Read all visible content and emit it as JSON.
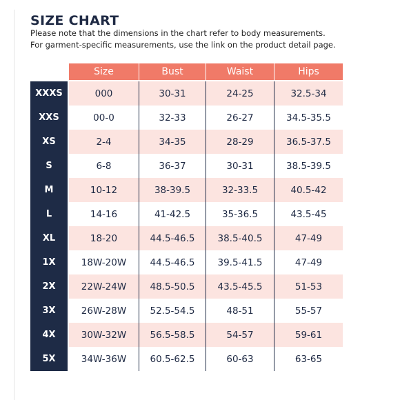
{
  "title": "SIZE CHART",
  "note_line1": "Please note that the dimensions in the chart refer to body measurements.",
  "note_line2": "For garment-specific measurements, use the link on the product detail page.",
  "colors": {
    "header": "#f07a68",
    "navy": "#1e2b46",
    "row_shade": "#fce4e0"
  },
  "columns": [
    "Size",
    "Bust",
    "Waist",
    "Hips"
  ],
  "rows": [
    {
      "label": "XXXS",
      "size": "000",
      "bust": "30-31",
      "waist": "24-25",
      "hips": "32.5-34"
    },
    {
      "label": "XXS",
      "size": "00-0",
      "bust": "32-33",
      "waist": "26-27",
      "hips": "34.5-35.5"
    },
    {
      "label": "XS",
      "size": "2-4",
      "bust": "34-35",
      "waist": "28-29",
      "hips": "36.5-37.5"
    },
    {
      "label": "S",
      "size": "6-8",
      "bust": "36-37",
      "waist": "30-31",
      "hips": "38.5-39.5"
    },
    {
      "label": "M",
      "size": "10-12",
      "bust": "38-39.5",
      "waist": "32-33.5",
      "hips": "40.5-42"
    },
    {
      "label": "L",
      "size": "14-16",
      "bust": "41-42.5",
      "waist": "35-36.5",
      "hips": "43.5-45"
    },
    {
      "label": "XL",
      "size": "18-20",
      "bust": "44.5-46.5",
      "waist": "38.5-40.5",
      "hips": "47-49"
    },
    {
      "label": "1X",
      "size": "18W-20W",
      "bust": "44.5-46.5",
      "waist": "39.5-41.5",
      "hips": "47-49"
    },
    {
      "label": "2X",
      "size": "22W-24W",
      "bust": "48.5-50.5",
      "waist": "43.5-45.5",
      "hips": "51-53"
    },
    {
      "label": "3X",
      "size": "26W-28W",
      "bust": "52.5-54.5",
      "waist": "48-51",
      "hips": "55-57"
    },
    {
      "label": "4X",
      "size": "30W-32W",
      "bust": "56.5-58.5",
      "waist": "54-57",
      "hips": "59-61"
    },
    {
      "label": "5X",
      "size": "34W-36W",
      "bust": "60.5-62.5",
      "waist": "60-63",
      "hips": "63-65"
    }
  ]
}
